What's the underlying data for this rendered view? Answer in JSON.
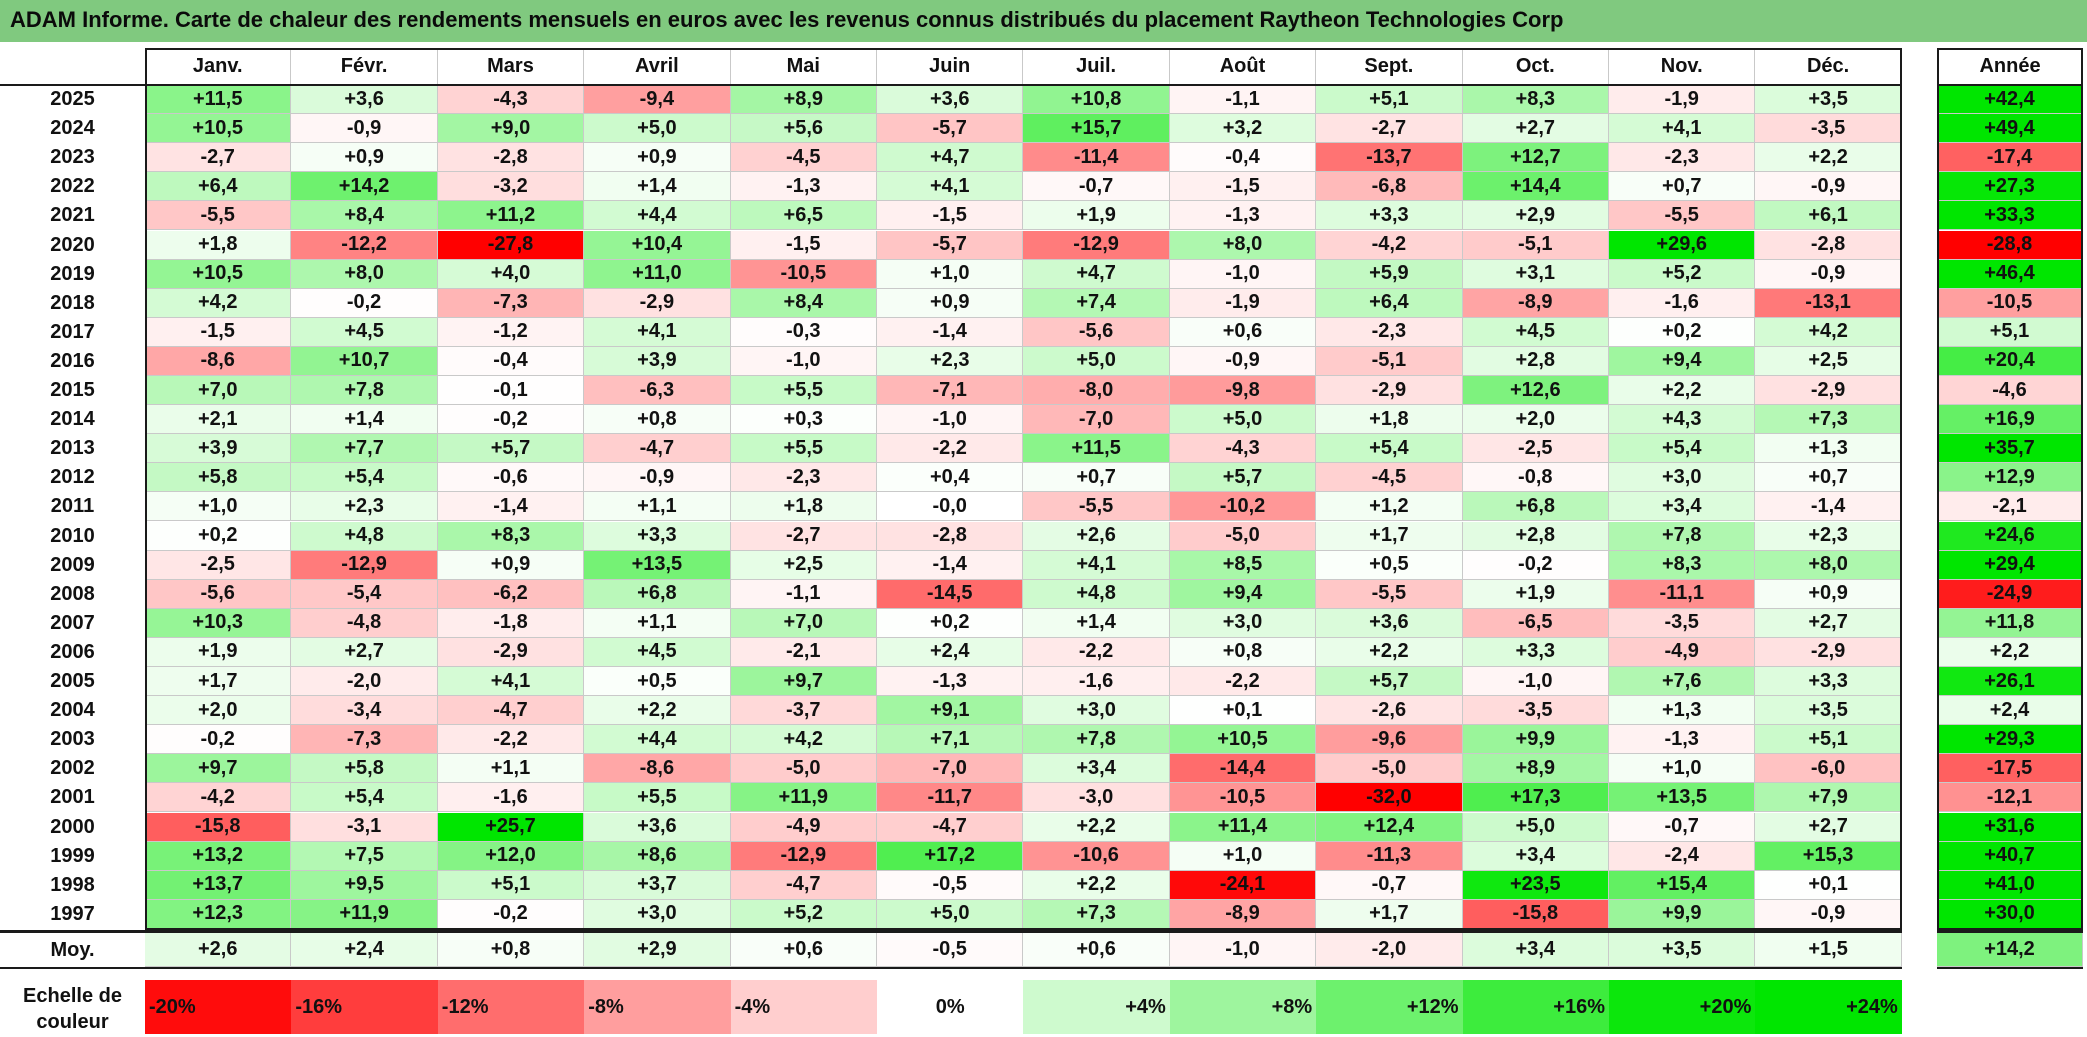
{
  "title": "ADAM Informe. Carte de chaleur des rendements mensuels en euros avec les revenus connus distribués du placement Raytheon Technologies Corp",
  "colors": {
    "title_bar": "#80c97f",
    "negative_max": "#ff0000",
    "neutral": "#ffffff",
    "positive_max": "#00e600"
  },
  "chart_data": {
    "type": "heatmap",
    "title": "ADAM Informe. Carte de chaleur des rendements mensuels en euros avec les revenus connus distribués du placement Raytheon Technologies Corp",
    "months": [
      "Janv.",
      "Févr.",
      "Mars",
      "Avril",
      "Mai",
      "Juin",
      "Juil.",
      "Août",
      "Sept.",
      "Oct.",
      "Nov.",
      "Déc."
    ],
    "annual_header": "Année",
    "rows": [
      {
        "year": "2025",
        "values": [
          "+11,5",
          "+3,6",
          "-4,3",
          "-9,4",
          "+8,9",
          "+3,6",
          "+10,8",
          "-1,1",
          "+5,1",
          "+8,3",
          "-1,9",
          "+3,5"
        ],
        "annual": "+42,4"
      },
      {
        "year": "2024",
        "values": [
          "+10,5",
          "-0,9",
          "+9,0",
          "+5,0",
          "+5,6",
          "-5,7",
          "+15,7",
          "+3,2",
          "-2,7",
          "+2,7",
          "+4,1",
          "-3,5"
        ],
        "annual": "+49,4"
      },
      {
        "year": "2023",
        "values": [
          "-2,7",
          "+0,9",
          "-2,8",
          "+0,9",
          "-4,5",
          "+4,7",
          "-11,4",
          "-0,4",
          "-13,7",
          "+12,7",
          "-2,3",
          "+2,2"
        ],
        "annual": "-17,4"
      },
      {
        "year": "2022",
        "values": [
          "+6,4",
          "+14,2",
          "-3,2",
          "+1,4",
          "-1,3",
          "+4,1",
          "-0,7",
          "-1,5",
          "-6,8",
          "+14,4",
          "+0,7",
          "-0,9"
        ],
        "annual": "+27,3"
      },
      {
        "year": "2021",
        "values": [
          "-5,5",
          "+8,4",
          "+11,2",
          "+4,4",
          "+6,5",
          "-1,5",
          "+1,9",
          "-1,3",
          "+3,3",
          "+2,9",
          "-5,5",
          "+6,1"
        ],
        "annual": "+33,3"
      },
      {
        "year": "2020",
        "values": [
          "+1,8",
          "-12,2",
          "-27,8",
          "+10,4",
          "-1,5",
          "-5,7",
          "-12,9",
          "+8,0",
          "-4,2",
          "-5,1",
          "+29,6",
          "-2,8"
        ],
        "annual": "-28,8"
      },
      {
        "year": "2019",
        "values": [
          "+10,5",
          "+8,0",
          "+4,0",
          "+11,0",
          "-10,5",
          "+1,0",
          "+4,7",
          "-1,0",
          "+5,9",
          "+3,1",
          "+5,2",
          "-0,9"
        ],
        "annual": "+46,4"
      },
      {
        "year": "2018",
        "values": [
          "+4,2",
          "-0,2",
          "-7,3",
          "-2,9",
          "+8,4",
          "+0,9",
          "+7,4",
          "-1,9",
          "+6,4",
          "-8,9",
          "-1,6",
          "-13,1"
        ],
        "annual": "-10,5"
      },
      {
        "year": "2017",
        "values": [
          "-1,5",
          "+4,5",
          "-1,2",
          "+4,1",
          "-0,3",
          "-1,4",
          "-5,6",
          "+0,6",
          "-2,3",
          "+4,5",
          "+0,2",
          "+4,2"
        ],
        "annual": "+5,1"
      },
      {
        "year": "2016",
        "values": [
          "-8,6",
          "+10,7",
          "-0,4",
          "+3,9",
          "-1,0",
          "+2,3",
          "+5,0",
          "-0,9",
          "-5,1",
          "+2,8",
          "+9,4",
          "+2,5"
        ],
        "annual": "+20,4"
      },
      {
        "year": "2015",
        "values": [
          "+7,0",
          "+7,8",
          "-0,1",
          "-6,3",
          "+5,5",
          "-7,1",
          "-8,0",
          "-9,8",
          "-2,9",
          "+12,6",
          "+2,2",
          "-2,9"
        ],
        "annual": "-4,6"
      },
      {
        "year": "2014",
        "values": [
          "+2,1",
          "+1,4",
          "-0,2",
          "+0,8",
          "+0,3",
          "-1,0",
          "-7,0",
          "+5,0",
          "+1,8",
          "+2,0",
          "+4,3",
          "+7,3"
        ],
        "annual": "+16,9"
      },
      {
        "year": "2013",
        "values": [
          "+3,9",
          "+7,7",
          "+5,7",
          "-4,7",
          "+5,5",
          "-2,2",
          "+11,5",
          "-4,3",
          "+5,4",
          "-2,5",
          "+5,4",
          "+1,3"
        ],
        "annual": "+35,7"
      },
      {
        "year": "2012",
        "values": [
          "+5,8",
          "+5,4",
          "-0,6",
          "-0,9",
          "-2,3",
          "+0,4",
          "+0,7",
          "+5,7",
          "-4,5",
          "-0,8",
          "+3,0",
          "+0,7"
        ],
        "annual": "+12,9"
      },
      {
        "year": "2011",
        "values": [
          "+1,0",
          "+2,3",
          "-1,4",
          "+1,1",
          "+1,8",
          "-0,0",
          "-5,5",
          "-10,2",
          "+1,2",
          "+6,8",
          "+3,4",
          "-1,4"
        ],
        "annual": "-2,1"
      },
      {
        "year": "2010",
        "values": [
          "+0,2",
          "+4,8",
          "+8,3",
          "+3,3",
          "-2,7",
          "-2,8",
          "+2,6",
          "-5,0",
          "+1,7",
          "+2,8",
          "+7,8",
          "+2,3"
        ],
        "annual": "+24,6"
      },
      {
        "year": "2009",
        "values": [
          "-2,5",
          "-12,9",
          "+0,9",
          "+13,5",
          "+2,5",
          "-1,4",
          "+4,1",
          "+8,5",
          "+0,5",
          "-0,2",
          "+8,3",
          "+8,0"
        ],
        "annual": "+29,4"
      },
      {
        "year": "2008",
        "values": [
          "-5,6",
          "-5,4",
          "-6,2",
          "+6,8",
          "-1,1",
          "-14,5",
          "+4,8",
          "+9,4",
          "-5,5",
          "+1,9",
          "-11,1",
          "+0,9"
        ],
        "annual": "-24,9"
      },
      {
        "year": "2007",
        "values": [
          "+10,3",
          "-4,8",
          "-1,8",
          "+1,1",
          "+7,0",
          "+0,2",
          "+1,4",
          "+3,0",
          "+3,6",
          "-6,5",
          "-3,5",
          "+2,7"
        ],
        "annual": "+11,8"
      },
      {
        "year": "2006",
        "values": [
          "+1,9",
          "+2,7",
          "-2,9",
          "+4,5",
          "-2,1",
          "+2,4",
          "-2,2",
          "+0,8",
          "+2,2",
          "+3,3",
          "-4,9",
          "-2,9"
        ],
        "annual": "+2,2"
      },
      {
        "year": "2005",
        "values": [
          "+1,7",
          "-2,0",
          "+4,1",
          "+0,5",
          "+9,7",
          "-1,3",
          "-1,6",
          "-2,2",
          "+5,7",
          "-1,0",
          "+7,6",
          "+3,3"
        ],
        "annual": "+26,1"
      },
      {
        "year": "2004",
        "values": [
          "+2,0",
          "-3,4",
          "-4,7",
          "+2,2",
          "-3,7",
          "+9,1",
          "+3,0",
          "+0,1",
          "-2,6",
          "-3,5",
          "+1,3",
          "+3,5"
        ],
        "annual": "+2,4"
      },
      {
        "year": "2003",
        "values": [
          "-0,2",
          "-7,3",
          "-2,2",
          "+4,4",
          "+4,2",
          "+7,1",
          "+7,8",
          "+10,5",
          "-9,6",
          "+9,9",
          "-1,3",
          "+5,1"
        ],
        "annual": "+29,3"
      },
      {
        "year": "2002",
        "values": [
          "+9,7",
          "+5,8",
          "+1,1",
          "-8,6",
          "-5,0",
          "-7,0",
          "+3,4",
          "-14,4",
          "-5,0",
          "+8,9",
          "+1,0",
          "-6,0"
        ],
        "annual": "-17,5"
      },
      {
        "year": "2001",
        "values": [
          "-4,2",
          "+5,4",
          "-1,6",
          "+5,5",
          "+11,9",
          "-11,7",
          "-3,0",
          "-10,5",
          "-32,0",
          "+17,3",
          "+13,5",
          "+7,9"
        ],
        "annual": "-12,1"
      },
      {
        "year": "2000",
        "values": [
          "-15,8",
          "-3,1",
          "+25,7",
          "+3,6",
          "-4,9",
          "-4,7",
          "+2,2",
          "+11,4",
          "+12,4",
          "+5,0",
          "-0,7",
          "+2,7"
        ],
        "annual": "+31,6"
      },
      {
        "year": "1999",
        "values": [
          "+13,2",
          "+7,5",
          "+12,0",
          "+8,6",
          "-12,9",
          "+17,2",
          "-10,6",
          "+1,0",
          "-11,3",
          "+3,4",
          "-2,4",
          "+15,3"
        ],
        "annual": "+40,7"
      },
      {
        "year": "1998",
        "values": [
          "+13,7",
          "+9,5",
          "+5,1",
          "+3,7",
          "-4,7",
          "-0,5",
          "+2,2",
          "-24,1",
          "-0,7",
          "+23,5",
          "+15,4",
          "+0,1"
        ],
        "annual": "+41,0"
      },
      {
        "year": "1997",
        "values": [
          "+12,3",
          "+11,9",
          "-0,2",
          "+3,0",
          "+5,2",
          "+5,0",
          "+7,3",
          "-8,9",
          "+1,7",
          "-15,8",
          "+9,9",
          "-0,9"
        ],
        "annual": "+30,0"
      }
    ],
    "average": {
      "label": "Moy.",
      "values": [
        "+2,6",
        "+2,4",
        "+0,8",
        "+2,9",
        "+0,6",
        "-0,5",
        "+0,6",
        "-1,0",
        "-2,0",
        "+3,4",
        "+3,5",
        "+1,5"
      ],
      "annual": "+14,2"
    },
    "color_scale": {
      "label_line1": "Echelle de",
      "label_line2": "couleur",
      "stops": [
        "-20%",
        "-16%",
        "-12%",
        "-8%",
        "-4%",
        "0%",
        "+4%",
        "+8%",
        "+12%",
        "+16%",
        "+20%",
        "+24%"
      ]
    }
  }
}
